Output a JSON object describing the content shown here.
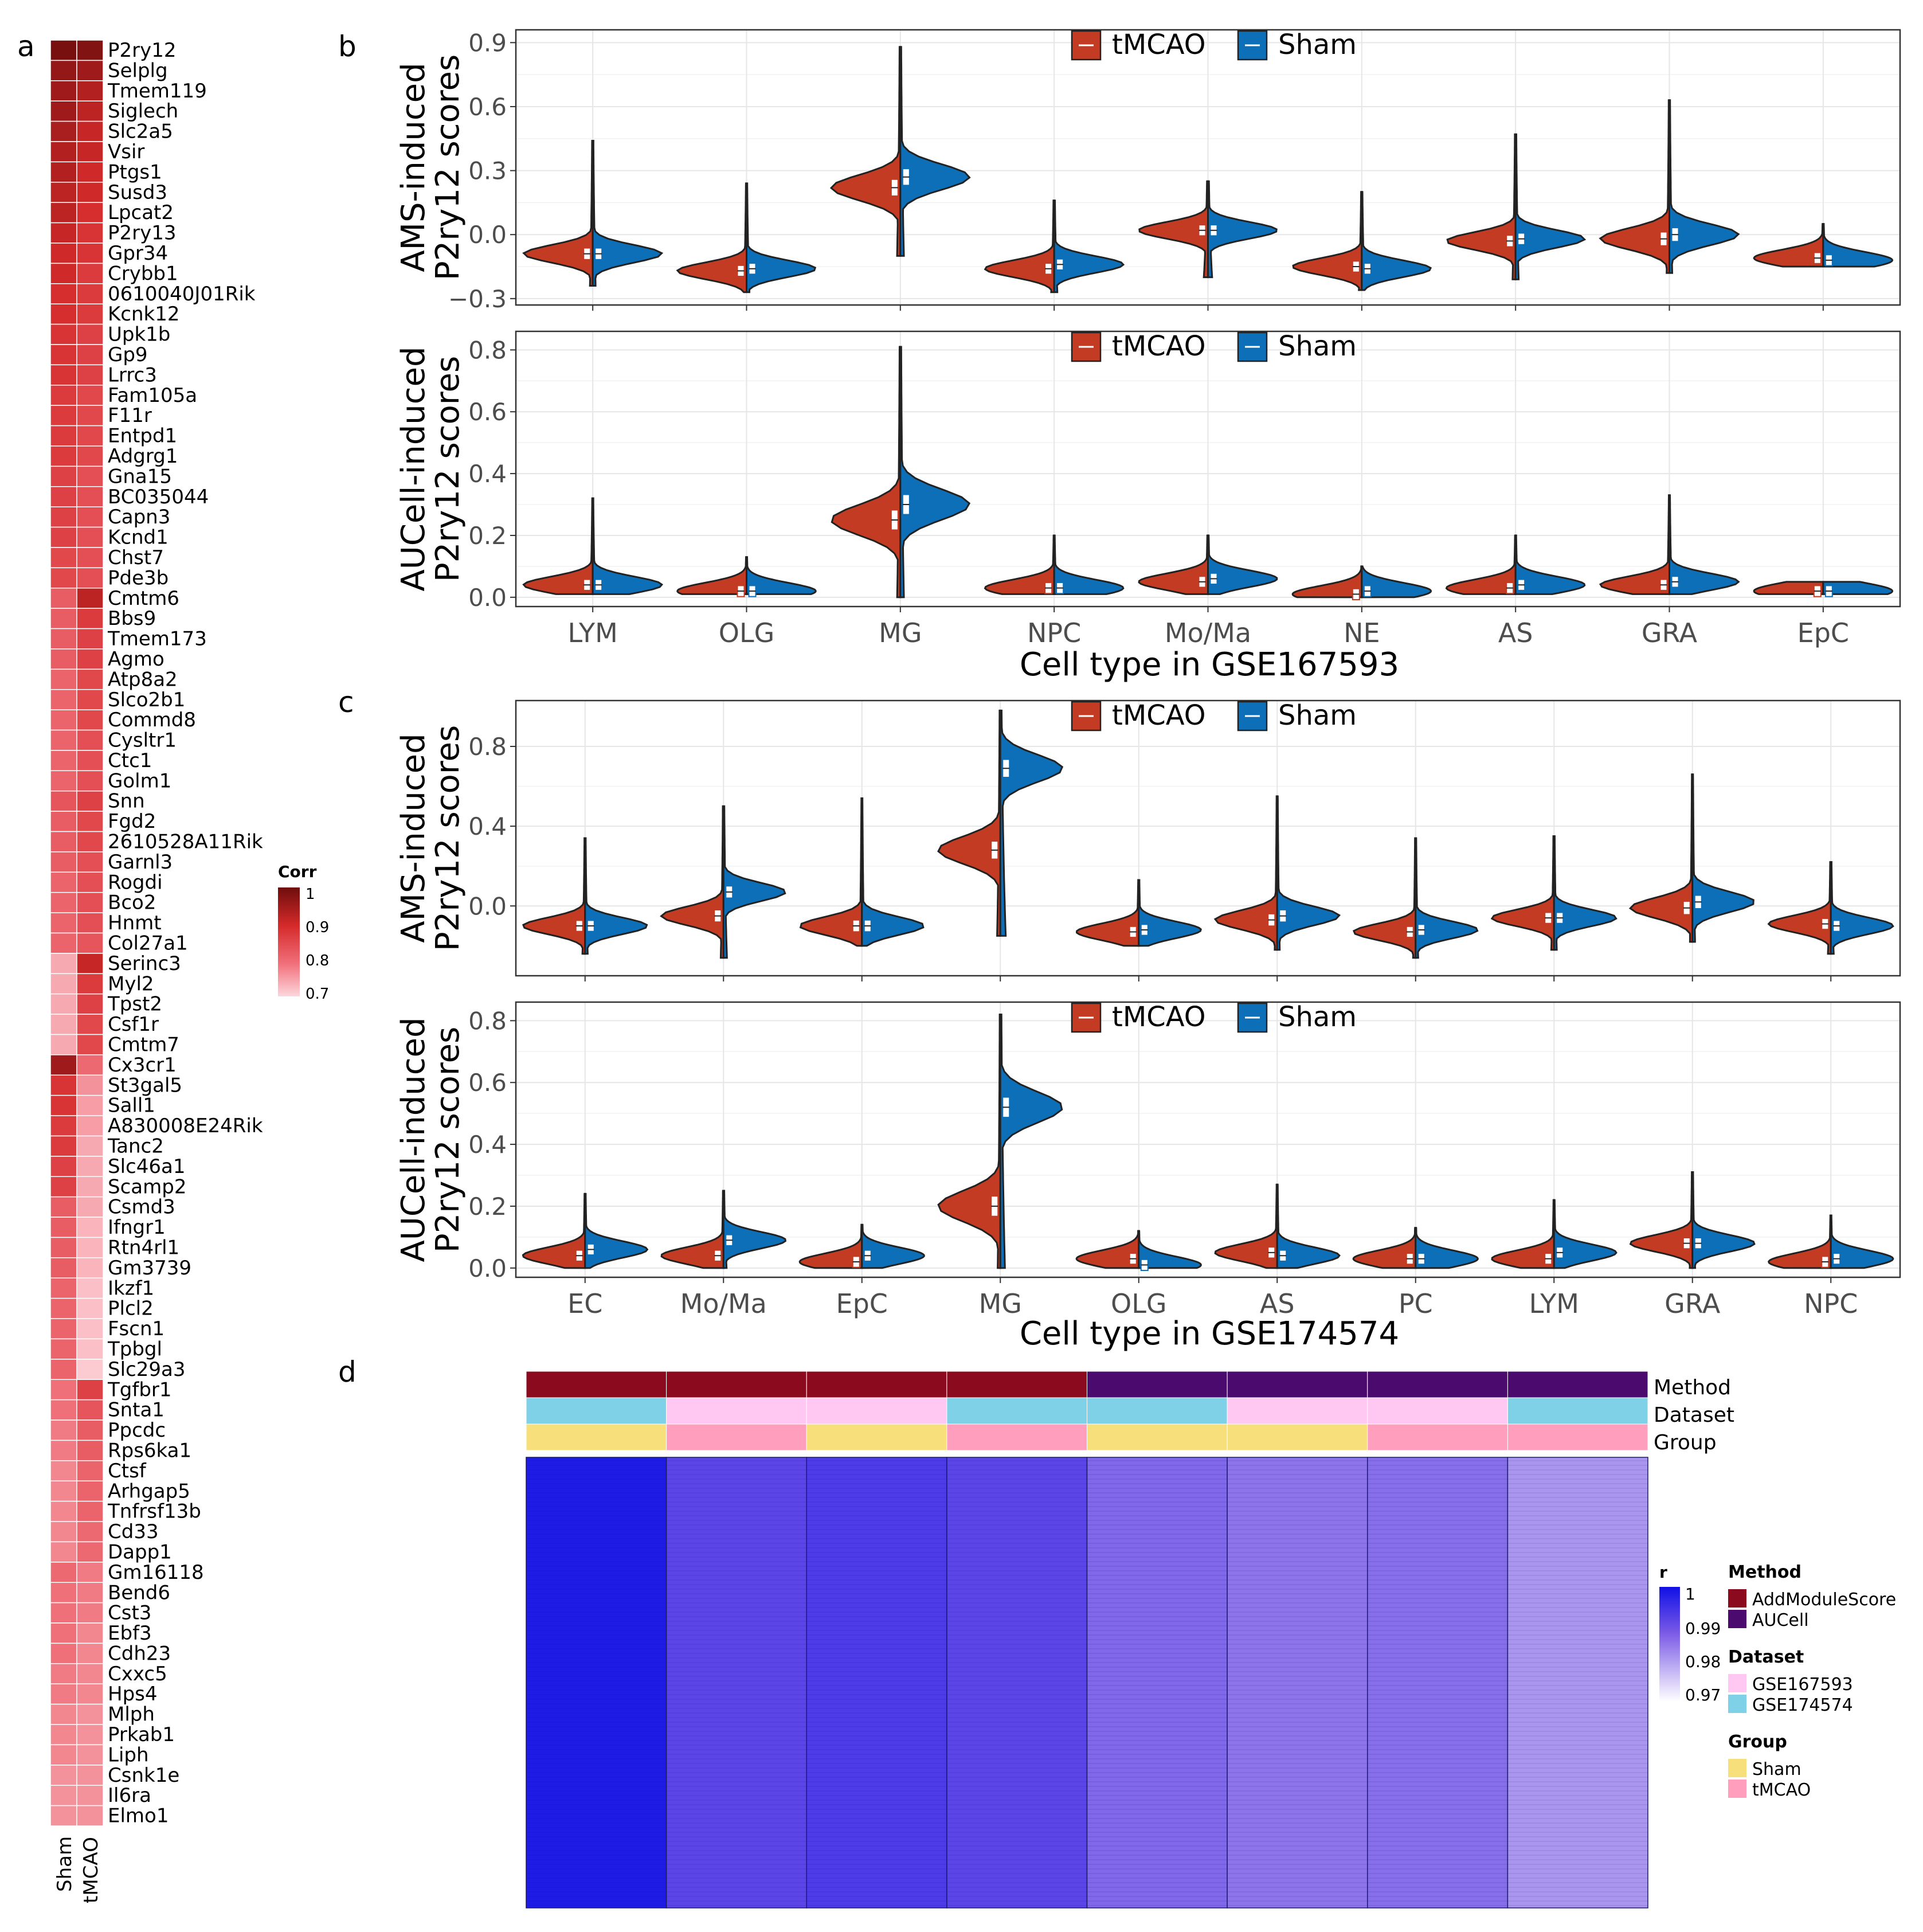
{
  "colors": {
    "tmcao_fill": "#c23b22",
    "sham_fill": "#0d6fb8",
    "sham_box": "#ffffff",
    "heat_low": "#fbd0d6",
    "heat_high": "#6e0d0d",
    "method_ams": "#8b0a1e",
    "method_auc": "#4a0a6e",
    "dataset_167": "#ffc8f2",
    "dataset_174": "#7fd1e8",
    "group_sham": "#f7e07c",
    "group_tmcao": "#ff9fbd"
  },
  "panels": {
    "a": {
      "label": "a"
    },
    "b": {
      "label": "b"
    },
    "c": {
      "label": "c"
    },
    "d": {
      "label": "d"
    }
  },
  "chart_data": [
    {
      "id": "a",
      "type": "heatmap",
      "title": "",
      "columns": [
        "Sham",
        "tMCAO"
      ],
      "legend_title": "Corr",
      "legend_ticks": [
        "1",
        "0.9",
        "0.8",
        "0.7"
      ],
      "range": [
        0.7,
        1.0
      ],
      "genes": [
        "P2ry12",
        "Selplg",
        "Tmem119",
        "Siglech",
        "Slc2a5",
        "Vsir",
        "Ptgs1",
        "Susd3",
        "Lpcat2",
        "P2ry13",
        "Gpr34",
        "Crybb1",
        "0610040J01Rik",
        "Kcnk12",
        "Upk1b",
        "Gp9",
        "Lrrc3",
        "Fam105a",
        "F11r",
        "Entpd1",
        "Adgrg1",
        "Gna15",
        "BC035044",
        "Capn3",
        "Kcnd1",
        "Chst7",
        "Pde3b",
        "Cmtm6",
        "Bbs9",
        "Tmem173",
        "Agmo",
        "Atp8a2",
        "Slco2b1",
        "Commd8",
        "Cysltr1",
        "Ctc1",
        "Golm1",
        "Snn",
        "Fgd2",
        "2610528A11Rik",
        "Garnl3",
        "Rogdi",
        "Bco2",
        "Hnmt",
        "Col27a1",
        "Serinc3",
        "Myl2",
        "Tpst2",
        "Csf1r",
        "Cmtm7",
        "Cx3cr1",
        "St3gal5",
        "Sall1",
        "A830008E24Rik",
        "Tanc2",
        "Slc46a1",
        "Scamp2",
        "Csmd3",
        "Ifngr1",
        "Rtn4rl1",
        "Gm3739",
        "Ikzf1",
        "Plcl2",
        "Fscn1",
        "Tpbgl",
        "Slc29a3",
        "Tgfbr1",
        "Snta1",
        "Ppcdc",
        "Rps6ka1",
        "Ctsf",
        "Arhgap5",
        "Tnfrsf13b",
        "Cd33",
        "Dapp1",
        "Gm16118",
        "Bend6",
        "Cst3",
        "Ebf3",
        "Cdh23",
        "Cxxc5",
        "Hps4",
        "Mlph",
        "Prkab1",
        "Liph",
        "Csnk1e",
        "Il6ra",
        "Elmo1"
      ],
      "values_sham": [
        0.99,
        0.96,
        0.95,
        0.95,
        0.94,
        0.93,
        0.93,
        0.92,
        0.92,
        0.91,
        0.9,
        0.9,
        0.89,
        0.89,
        0.88,
        0.88,
        0.88,
        0.87,
        0.87,
        0.87,
        0.87,
        0.86,
        0.86,
        0.86,
        0.86,
        0.85,
        0.85,
        0.82,
        0.82,
        0.82,
        0.82,
        0.81,
        0.81,
        0.81,
        0.81,
        0.81,
        0.81,
        0.83,
        0.82,
        0.82,
        0.82,
        0.81,
        0.81,
        0.81,
        0.81,
        0.74,
        0.74,
        0.74,
        0.74,
        0.74,
        0.95,
        0.88,
        0.88,
        0.87,
        0.87,
        0.86,
        0.86,
        0.82,
        0.82,
        0.82,
        0.82,
        0.81,
        0.81,
        0.81,
        0.81,
        0.81,
        0.79,
        0.79,
        0.78,
        0.78,
        0.77,
        0.77,
        0.77,
        0.77,
        0.77,
        0.8,
        0.79,
        0.79,
        0.79,
        0.79,
        0.78,
        0.78,
        0.77,
        0.77,
        0.77,
        0.76,
        0.76,
        0.76
      ],
      "values_tmcao": [
        0.98,
        0.95,
        0.93,
        0.92,
        0.91,
        0.91,
        0.9,
        0.9,
        0.89,
        0.88,
        0.88,
        0.87,
        0.87,
        0.87,
        0.86,
        0.86,
        0.86,
        0.85,
        0.85,
        0.85,
        0.85,
        0.84,
        0.84,
        0.84,
        0.84,
        0.84,
        0.84,
        0.92,
        0.87,
        0.86,
        0.86,
        0.85,
        0.85,
        0.85,
        0.84,
        0.84,
        0.84,
        0.86,
        0.85,
        0.85,
        0.84,
        0.84,
        0.84,
        0.84,
        0.83,
        0.91,
        0.87,
        0.86,
        0.85,
        0.85,
        0.8,
        0.76,
        0.75,
        0.75,
        0.74,
        0.74,
        0.74,
        0.74,
        0.73,
        0.73,
        0.73,
        0.72,
        0.72,
        0.72,
        0.72,
        0.71,
        0.86,
        0.83,
        0.82,
        0.82,
        0.81,
        0.81,
        0.81,
        0.8,
        0.8,
        0.78,
        0.78,
        0.78,
        0.77,
        0.77,
        0.77,
        0.77,
        0.76,
        0.76,
        0.76,
        0.76,
        0.76,
        0.76
      ]
    },
    {
      "id": "b1",
      "type": "violin",
      "ylabel_lines": [
        "AMS-induced",
        "P2ry12 scores"
      ],
      "ylim": [
        -0.33,
        0.96
      ],
      "yticks": [
        -0.3,
        0.0,
        0.3,
        0.6,
        0.9
      ],
      "ytick_labels": [
        "−0.3",
        "0.0",
        "0.3",
        "0.6",
        "0.9"
      ],
      "legend": [
        "tMCAO",
        "Sham"
      ],
      "categories": [
        "LYM",
        "OLG",
        "MG",
        "NPC",
        "Mo/Ma",
        "NE",
        "AS",
        "GRA",
        "EpC"
      ],
      "tmcao": {
        "median": [
          -0.09,
          -0.17,
          0.22,
          -0.16,
          0.02,
          -0.15,
          -0.03,
          -0.02,
          -0.11
        ],
        "min": [
          -0.24,
          -0.27,
          -0.1,
          -0.27,
          -0.2,
          -0.26,
          -0.21,
          -0.18,
          -0.15
        ],
        "max": [
          0.44,
          0.24,
          0.88,
          0.16,
          0.25,
          0.2,
          0.47,
          0.63,
          0.05
        ]
      },
      "sham": {
        "median": [
          -0.09,
          -0.16,
          0.27,
          -0.14,
          0.02,
          -0.16,
          -0.02,
          0.0,
          -0.12
        ],
        "min": [
          -0.24,
          -0.27,
          -0.1,
          -0.27,
          -0.2,
          -0.26,
          -0.21,
          -0.18,
          -0.15
        ],
        "max": [
          0.44,
          0.24,
          0.88,
          0.16,
          0.25,
          0.2,
          0.47,
          0.63,
          0.05
        ]
      }
    },
    {
      "id": "b2",
      "type": "violin",
      "ylabel_lines": [
        "AUCell-induced",
        "P2ry12 scores"
      ],
      "ylim": [
        -0.03,
        0.86
      ],
      "yticks": [
        0.0,
        0.2,
        0.4,
        0.6,
        0.8
      ],
      "ytick_labels": [
        "0.0",
        "0.2",
        "0.4",
        "0.6",
        "0.8"
      ],
      "legend": [
        "tMCAO",
        "Sham"
      ],
      "xlabel": "Cell type in GSE167593",
      "categories": [
        "LYM",
        "OLG",
        "MG",
        "NPC",
        "Mo/Ma",
        "NE",
        "AS",
        "GRA",
        "EpC"
      ],
      "tmcao": {
        "median": [
          0.04,
          0.02,
          0.25,
          0.03,
          0.05,
          0.01,
          0.03,
          0.04,
          0.02
        ],
        "min": [
          0.01,
          0.01,
          0.0,
          0.01,
          0.01,
          0.0,
          0.01,
          0.01,
          0.01
        ],
        "max": [
          0.32,
          0.13,
          0.81,
          0.2,
          0.2,
          0.1,
          0.2,
          0.33,
          0.05
        ]
      },
      "sham": {
        "median": [
          0.04,
          0.02,
          0.3,
          0.03,
          0.06,
          0.02,
          0.04,
          0.05,
          0.02
        ],
        "min": [
          0.01,
          0.01,
          0.0,
          0.01,
          0.01,
          0.0,
          0.01,
          0.01,
          0.01
        ],
        "max": [
          0.32,
          0.13,
          0.81,
          0.2,
          0.2,
          0.1,
          0.2,
          0.33,
          0.05
        ]
      }
    },
    {
      "id": "c1",
      "type": "violin",
      "ylabel_lines": [
        "AMS-induced",
        "P2ry12 scores"
      ],
      "ylim": [
        -0.35,
        1.03
      ],
      "yticks": [
        0.0,
        0.4,
        0.8
      ],
      "ytick_labels": [
        "0.0",
        "0.4",
        "0.8"
      ],
      "legend": [
        "tMCAO",
        "Sham"
      ],
      "categories": [
        "EC",
        "Mo/Ma",
        "EpC",
        "MG",
        "OLG",
        "AS",
        "PC",
        "LYM",
        "GRA",
        "NPC"
      ],
      "tmcao": {
        "median": [
          -0.1,
          -0.05,
          -0.1,
          0.28,
          -0.13,
          -0.07,
          -0.13,
          -0.06,
          -0.01,
          -0.09
        ],
        "min": [
          -0.24,
          -0.26,
          -0.2,
          -0.15,
          -0.2,
          -0.22,
          -0.26,
          -0.22,
          -0.18,
          -0.24
        ],
        "max": [
          0.34,
          0.5,
          0.54,
          0.98,
          0.13,
          0.55,
          0.34,
          0.35,
          0.66,
          0.22
        ]
      },
      "sham": {
        "median": [
          -0.1,
          0.07,
          -0.1,
          0.69,
          -0.12,
          -0.05,
          -0.12,
          -0.06,
          0.02,
          -0.1
        ],
        "min": [
          -0.24,
          -0.26,
          -0.2,
          -0.15,
          -0.2,
          -0.22,
          -0.26,
          -0.22,
          -0.18,
          -0.24
        ],
        "max": [
          0.34,
          0.5,
          0.54,
          0.98,
          0.13,
          0.55,
          0.34,
          0.35,
          0.66,
          0.22
        ]
      }
    },
    {
      "id": "c2",
      "type": "violin",
      "ylabel_lines": [
        "AUCell-induced",
        "P2ry12 scores"
      ],
      "ylim": [
        -0.03,
        0.86
      ],
      "yticks": [
        0.0,
        0.2,
        0.4,
        0.6,
        0.8
      ],
      "ytick_labels": [
        "0.0",
        "0.2",
        "0.4",
        "0.6",
        "0.8"
      ],
      "legend": [
        "tMCAO",
        "Sham"
      ],
      "xlabel": "Cell type in GSE174574",
      "categories": [
        "EC",
        "Mo/Ma",
        "EpC",
        "MG",
        "OLG",
        "AS",
        "PC",
        "LYM",
        "GRA",
        "NPC"
      ],
      "tmcao": {
        "median": [
          0.04,
          0.04,
          0.02,
          0.2,
          0.03,
          0.05,
          0.03,
          0.03,
          0.08,
          0.02
        ],
        "min": [
          0.0,
          0.0,
          0.0,
          0.0,
          0.0,
          0.0,
          0.0,
          0.0,
          0.0,
          0.0
        ],
        "max": [
          0.24,
          0.25,
          0.14,
          0.82,
          0.12,
          0.27,
          0.13,
          0.22,
          0.31,
          0.17
        ]
      },
      "sham": {
        "median": [
          0.06,
          0.09,
          0.04,
          0.52,
          0.01,
          0.04,
          0.03,
          0.05,
          0.08,
          0.03
        ],
        "min": [
          0.0,
          0.0,
          0.0,
          0.0,
          0.0,
          0.0,
          0.0,
          0.0,
          0.0,
          0.0
        ],
        "max": [
          0.24,
          0.25,
          0.14,
          0.82,
          0.12,
          0.27,
          0.13,
          0.22,
          0.31,
          0.17
        ]
      }
    },
    {
      "id": "d",
      "type": "heatmap",
      "annotation_rows": [
        "Method",
        "Dataset",
        "Group"
      ],
      "columns": [
        {
          "method": "AddModuleScore",
          "dataset": "GSE174574",
          "group": "Sham",
          "r_mean": 0.999
        },
        {
          "method": "AddModuleScore",
          "dataset": "GSE167593",
          "group": "tMCAO",
          "r_mean": 0.995
        },
        {
          "method": "AddModuleScore",
          "dataset": "GSE167593",
          "group": "Sham",
          "r_mean": 0.996
        },
        {
          "method": "AddModuleScore",
          "dataset": "GSE174574",
          "group": "tMCAO",
          "r_mean": 0.995
        },
        {
          "method": "AUCell",
          "dataset": "GSE174574",
          "group": "Sham",
          "r_mean": 0.99
        },
        {
          "method": "AUCell",
          "dataset": "GSE167593",
          "group": "Sham",
          "r_mean": 0.988
        },
        {
          "method": "AUCell",
          "dataset": "GSE167593",
          "group": "tMCAO",
          "r_mean": 0.989
        },
        {
          "method": "AUCell",
          "dataset": "GSE174574",
          "group": "tMCAO",
          "r_mean": 0.983
        }
      ],
      "legend_r_title": "r",
      "legend_r_ticks": [
        "1",
        "0.99",
        "0.98",
        "0.97"
      ],
      "legend_method_title": "Method",
      "legend_method": [
        "AddModuleScore",
        "AUCell"
      ],
      "legend_dataset_title": "Dataset",
      "legend_dataset": [
        "GSE167593",
        "GSE174574"
      ],
      "legend_group_title": "Group",
      "legend_group": [
        "Sham",
        "tMCAO"
      ]
    }
  ]
}
